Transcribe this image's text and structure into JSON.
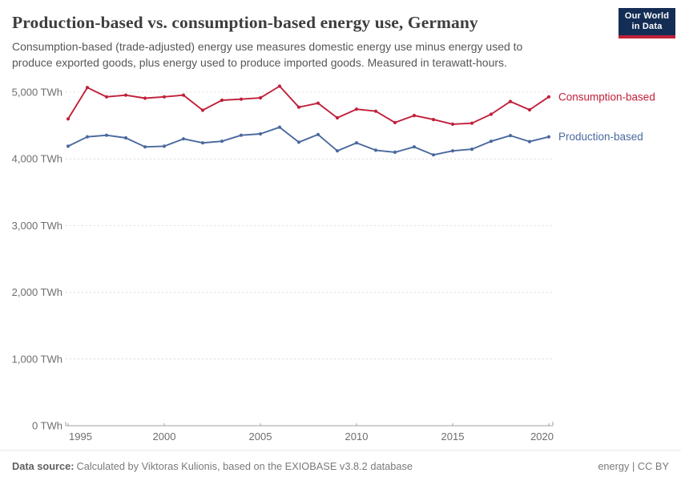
{
  "header": {
    "title": "Production-based vs. consumption-based energy use, Germany",
    "subtitle_line1": "Consumption-based (trade-adjusted) energy use measures domestic energy use minus energy used to",
    "subtitle_line2": "produce exported goods, plus energy used to produce imported goods. Measured in terawatt-hours.",
    "logo": {
      "line1": "Our World",
      "line2": "in Data",
      "bg_color": "#142d55",
      "accent_color": "#c0203a"
    }
  },
  "chart_data": {
    "type": "line",
    "title": "Production-based vs. consumption-based energy use, Germany",
    "unit": "TWh",
    "grid": "horizontal-dashed",
    "legend_position": "line-end-labels",
    "x": [
      1995,
      1996,
      1997,
      1998,
      1999,
      2000,
      2001,
      2002,
      2003,
      2004,
      2005,
      2006,
      2007,
      2008,
      2009,
      2010,
      2011,
      2012,
      2013,
      2014,
      2015,
      2016,
      2017,
      2018,
      2019,
      2020
    ],
    "xticks": [
      1995,
      2000,
      2005,
      2010,
      2015,
      2020
    ],
    "yticks": [
      0,
      1000,
      2000,
      3000,
      4000,
      5000
    ],
    "ytick_labels": [
      "0 TWh",
      "1,000 TWh",
      "2,000 TWh",
      "3,000 TWh",
      "4,000 TWh",
      "5,000 TWh"
    ],
    "ylim": [
      0,
      5100
    ],
    "series": [
      {
        "name": "Consumption-based",
        "color": "#c0203a",
        "values": [
          4600,
          5070,
          4930,
          4955,
          4910,
          4930,
          4955,
          4730,
          4880,
          4895,
          4915,
          5090,
          4775,
          4835,
          4615,
          4745,
          4715,
          4545,
          4650,
          4590,
          4520,
          4535,
          4670,
          4860,
          4735,
          4930
        ]
      },
      {
        "name": "Production-based",
        "color": "#4a699e",
        "values": [
          4190,
          4330,
          4355,
          4315,
          4180,
          4190,
          4300,
          4240,
          4265,
          4355,
          4375,
          4475,
          4250,
          4365,
          4120,
          4240,
          4130,
          4100,
          4180,
          4060,
          4120,
          4145,
          4265,
          4350,
          4260,
          4330
        ]
      }
    ]
  },
  "footer": {
    "datasource_label": "Data source:",
    "datasource_text": "Calculated by Viktoras Kulionis, based on the EXIOBASE v3.8.2 database",
    "right_text": "energy | CC BY"
  }
}
